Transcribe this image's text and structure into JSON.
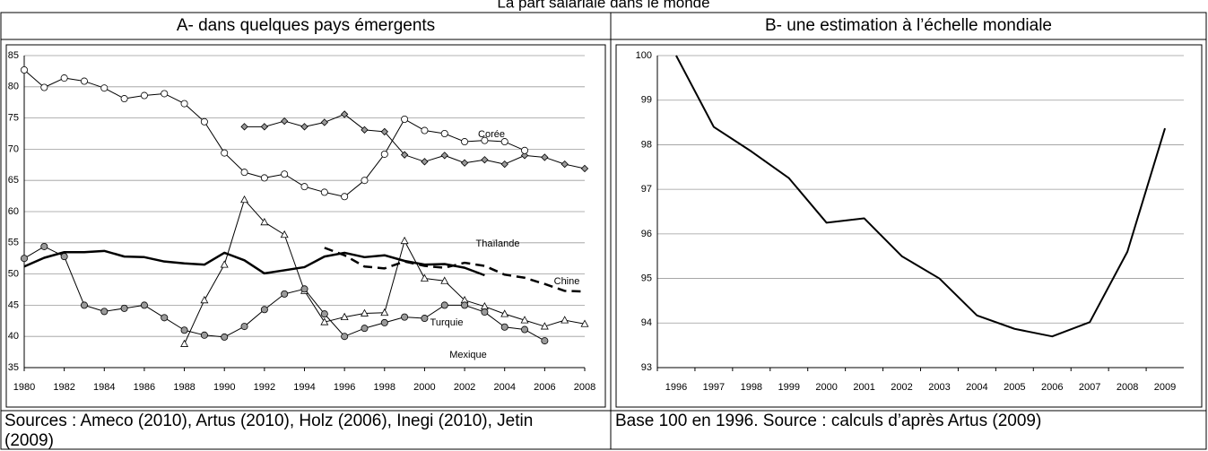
{
  "title": "La part salariale dans le monde",
  "chart_data": [
    {
      "type": "line",
      "title": "A- dans quelques pays émergents",
      "note": "Sources : Ameco (2010), Artus (2010), Holz (2006), Inegi (2010), Jetin (2009)",
      "x": [
        1980,
        1981,
        1982,
        1983,
        1984,
        1985,
        1986,
        1987,
        1988,
        1989,
        1990,
        1991,
        1992,
        1993,
        1994,
        1995,
        1996,
        1997,
        1998,
        1999,
        2000,
        2001,
        2002,
        2003,
        2004,
        2005,
        2006,
        2007,
        2008
      ],
      "xlim": [
        1980,
        2008
      ],
      "xticks": [
        1980,
        1982,
        1984,
        1986,
        1988,
        1990,
        1992,
        1994,
        1996,
        1998,
        2000,
        2002,
        2004,
        2006,
        2008
      ],
      "ylim": [
        35,
        85
      ],
      "yticks": [
        35,
        40,
        45,
        50,
        55,
        60,
        65,
        70,
        75,
        80,
        85
      ],
      "grid": true,
      "series": [
        {
          "name": "Corée",
          "color": "#000000",
          "marker": "diamond",
          "marker_fill": "#999999",
          "width": 1,
          "values": [
            null,
            null,
            null,
            null,
            null,
            null,
            null,
            null,
            null,
            null,
            null,
            73.6,
            73.6,
            74.5,
            73.6,
            74.3,
            75.6,
            73.1,
            72.8,
            69.1,
            68.0,
            69.0,
            67.8,
            68.3,
            67.6,
            69.0,
            68.7,
            67.6,
            66.9
          ]
        },
        {
          "name": "Thaïlande",
          "color": "#000000",
          "marker": "circle",
          "marker_fill": "#ffffff",
          "width": 1,
          "values": [
            82.7,
            79.9,
            81.4,
            80.9,
            79.8,
            78.1,
            78.6,
            78.9,
            77.3,
            74.4,
            69.4,
            66.3,
            65.4,
            66.0,
            64.0,
            63.1,
            62.4,
            65.0,
            69.2,
            74.8,
            73.0,
            72.5,
            71.2,
            71.4,
            71.2,
            69.8,
            null,
            null,
            null
          ]
        },
        {
          "color": "#000000",
          "width": 2.5,
          "values": [
            51.2,
            52.6,
            53.5,
            53.5,
            53.7,
            52.8,
            52.7,
            52.0,
            51.7,
            51.5,
            53.4,
            52.2,
            50.1,
            50.6,
            51.1,
            52.8,
            53.4,
            52.7,
            53.0,
            52.1,
            51.5,
            51.6,
            51.0,
            49.8,
            null,
            null,
            null,
            null,
            null
          ]
        },
        {
          "name": "Chine",
          "color": "#000000",
          "dash": true,
          "width": 2.5,
          "values": [
            null,
            null,
            null,
            null,
            null,
            null,
            null,
            null,
            null,
            null,
            null,
            null,
            null,
            null,
            null,
            54.2,
            53.0,
            51.2,
            50.9,
            52.0,
            51.3,
            51.0,
            51.8,
            51.3,
            49.9,
            49.4,
            48.4,
            47.3,
            47.2
          ]
        },
        {
          "name": "Turquie",
          "color": "#000000",
          "marker": "triangle",
          "marker_fill": "#ffffff",
          "width": 1,
          "values": [
            null,
            null,
            null,
            null,
            null,
            null,
            null,
            null,
            38.8,
            45.8,
            51.5,
            61.9,
            58.3,
            56.3,
            47.3,
            42.3,
            43.1,
            43.7,
            43.8,
            55.3,
            49.3,
            48.9,
            45.8,
            44.8,
            43.6,
            42.6,
            41.6,
            42.6,
            42.0
          ]
        },
        {
          "name": "Mexique",
          "color": "#000000",
          "marker": "circle",
          "marker_fill": "#9a9a9a",
          "width": 1,
          "values": [
            52.5,
            54.4,
            52.8,
            45.0,
            44.0,
            44.5,
            45.0,
            43.0,
            41.0,
            40.2,
            39.9,
            41.6,
            44.3,
            46.8,
            47.6,
            43.6,
            40.0,
            41.3,
            42.2,
            43.1,
            42.9,
            45.0,
            45.0,
            43.9,
            41.5,
            41.1,
            39.3,
            null,
            null
          ]
        }
      ]
    },
    {
      "type": "line",
      "title": "B- une estimation à l’échelle mondiale",
      "note": "Base 100 en 1996. Source : calculs d’après Artus (2009)",
      "categories": [
        "1996",
        "1997",
        "1998",
        "1999",
        "2000",
        "2001",
        "2002",
        "2003",
        "2004",
        "2005",
        "2006",
        "2007",
        "2008",
        "2009"
      ],
      "ylim": [
        93,
        100
      ],
      "yticks": [
        93,
        94,
        95,
        96,
        97,
        98,
        99,
        100
      ],
      "grid": true,
      "color": "#000000",
      "values": [
        100,
        98.4,
        97.85,
        97.25,
        96.25,
        96.35,
        95.5,
        95.0,
        94.17,
        93.87,
        93.7,
        94.02,
        95.6,
        98.37
      ]
    }
  ]
}
